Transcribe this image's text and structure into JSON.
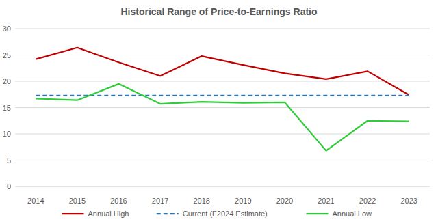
{
  "chart_data": {
    "type": "line",
    "title": "Historical Range of Price-to-Earnings Ratio",
    "categories": [
      "2014",
      "2015",
      "2016",
      "2017",
      "2018",
      "2019",
      "2020",
      "2021",
      "2022",
      "2023"
    ],
    "series": [
      {
        "name": "Annual High",
        "color": "#c00000",
        "line_style": "solid",
        "values": [
          24.2,
          26.4,
          23.6,
          21.0,
          24.8,
          23.1,
          21.5,
          20.4,
          21.9,
          17.4
        ]
      },
      {
        "name": "Current (F2024 Estimate)",
        "color": "#2e75b6",
        "line_style": "dashed",
        "values": [
          17.3,
          17.3,
          17.3,
          17.3,
          17.3,
          17.3,
          17.3,
          17.3,
          17.3,
          17.3
        ]
      },
      {
        "name": "Annual Low",
        "color": "#2fcc3a",
        "line_style": "solid",
        "values": [
          16.7,
          16.4,
          19.5,
          15.7,
          16.1,
          15.9,
          16.0,
          6.8,
          12.5,
          12.4
        ]
      }
    ],
    "ylim": [
      0,
      30
    ],
    "yticks": [
      0,
      5,
      10,
      15,
      20,
      25,
      30
    ],
    "grid": true,
    "legend": "bottom"
  }
}
